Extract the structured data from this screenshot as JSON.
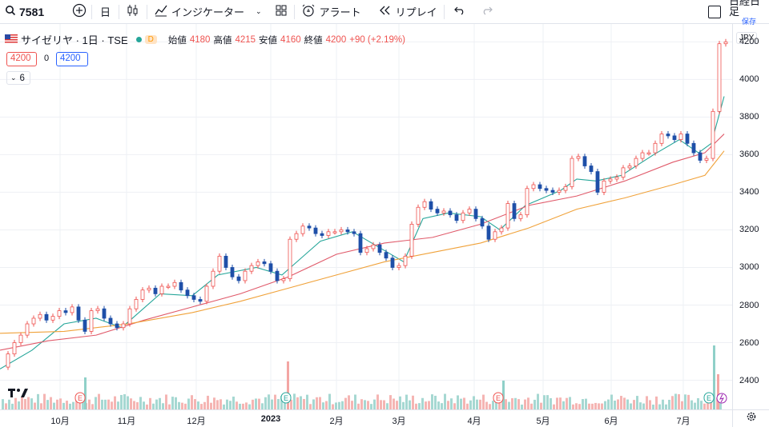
{
  "toolbar": {
    "symbol": "7581",
    "interval": "日",
    "indicators_label": "インジケーター",
    "alert_label": "アラート",
    "replay_label": "リプレイ",
    "index_label": "日経日足",
    "save_label": "保存"
  },
  "legend": {
    "title": "サイゼリヤ · 1日 · TSE",
    "badge": "D",
    "open_label": "始値",
    "open": "4180",
    "high_label": "高値",
    "high": "4215",
    "low_label": "安値",
    "low": "4160",
    "close_label": "終値",
    "close": "4200",
    "change": "+90 (+2.19%)",
    "bid": "4200",
    "spread": "0",
    "ask": "4200",
    "indicator_count": "6"
  },
  "currency": "JPY",
  "colors": {
    "up": "#26a69a",
    "down": "#ef5350",
    "ma_short": "#26a69a",
    "ma_mid": "#e05a6a",
    "ma_long": "#f0a23a",
    "up_candle": "#ffffff",
    "down_candle": "#1e4fa8"
  },
  "chart_data": {
    "type": "candlestick",
    "x_labels": [
      "10月",
      "11月",
      "12月",
      "2023",
      "2月",
      "3月",
      "4月",
      "5月",
      "6月",
      "7月"
    ],
    "y_ticks": [
      2400,
      2600,
      2800,
      3000,
      3200,
      3400,
      3600,
      3800,
      4000,
      4200
    ],
    "ylim": [
      2245,
      4295
    ],
    "earnings_markers": [
      "E",
      "E",
      "E",
      "E"
    ],
    "series": [
      {
        "name": "price",
        "points": [
          [
            0,
            2470
          ],
          [
            8,
            2540
          ],
          [
            16,
            2600
          ],
          [
            24,
            2640
          ],
          [
            32,
            2700
          ],
          [
            40,
            2730
          ],
          [
            48,
            2750
          ],
          [
            56,
            2720
          ],
          [
            64,
            2740
          ],
          [
            72,
            2770
          ],
          [
            80,
            2760
          ],
          [
            88,
            2790
          ],
          [
            96,
            2720
          ],
          [
            104,
            2660
          ],
          [
            112,
            2770
          ],
          [
            120,
            2780
          ],
          [
            128,
            2730
          ],
          [
            136,
            2700
          ],
          [
            144,
            2680
          ],
          [
            152,
            2700
          ],
          [
            160,
            2780
          ],
          [
            168,
            2830
          ],
          [
            176,
            2880
          ],
          [
            184,
            2890
          ],
          [
            192,
            2860
          ],
          [
            200,
            2900
          ],
          [
            208,
            2900
          ],
          [
            216,
            2920
          ],
          [
            224,
            2880
          ],
          [
            232,
            2850
          ],
          [
            240,
            2830
          ],
          [
            248,
            2820
          ],
          [
            256,
            2900
          ],
          [
            264,
            2980
          ],
          [
            272,
            3060
          ],
          [
            280,
            3000
          ],
          [
            288,
            2950
          ],
          [
            296,
            2930
          ],
          [
            304,
            2980
          ],
          [
            312,
            3010
          ],
          [
            320,
            3030
          ],
          [
            328,
            3020
          ],
          [
            336,
            2980
          ],
          [
            344,
            2930
          ],
          [
            352,
            2940
          ],
          [
            360,
            3150
          ],
          [
            368,
            3180
          ],
          [
            376,
            3220
          ],
          [
            384,
            3210
          ],
          [
            392,
            3180
          ],
          [
            400,
            3170
          ],
          [
            408,
            3190
          ],
          [
            416,
            3190
          ],
          [
            424,
            3200
          ],
          [
            432,
            3190
          ],
          [
            440,
            3180
          ],
          [
            448,
            3080
          ],
          [
            456,
            3100
          ],
          [
            464,
            3120
          ],
          [
            472,
            3080
          ],
          [
            480,
            3050
          ],
          [
            488,
            3000
          ],
          [
            496,
            3010
          ],
          [
            504,
            3060
          ],
          [
            512,
            3230
          ],
          [
            520,
            3320
          ],
          [
            528,
            3350
          ],
          [
            536,
            3310
          ],
          [
            544,
            3290
          ],
          [
            552,
            3300
          ],
          [
            560,
            3280
          ],
          [
            568,
            3250
          ],
          [
            576,
            3290
          ],
          [
            584,
            3310
          ],
          [
            592,
            3260
          ],
          [
            600,
            3220
          ],
          [
            608,
            3150
          ],
          [
            616,
            3190
          ],
          [
            624,
            3210
          ],
          [
            632,
            3340
          ],
          [
            640,
            3260
          ],
          [
            648,
            3280
          ],
          [
            656,
            3420
          ],
          [
            664,
            3440
          ],
          [
            672,
            3420
          ],
          [
            680,
            3410
          ],
          [
            688,
            3400
          ],
          [
            696,
            3410
          ],
          [
            704,
            3430
          ],
          [
            712,
            3580
          ],
          [
            720,
            3590
          ],
          [
            728,
            3540
          ],
          [
            736,
            3510
          ],
          [
            744,
            3400
          ],
          [
            752,
            3460
          ],
          [
            760,
            3470
          ],
          [
            768,
            3480
          ],
          [
            776,
            3530
          ],
          [
            784,
            3540
          ],
          [
            792,
            3580
          ],
          [
            800,
            3610
          ],
          [
            808,
            3610
          ],
          [
            816,
            3660
          ],
          [
            824,
            3710
          ],
          [
            832,
            3700
          ],
          [
            840,
            3680
          ],
          [
            848,
            3710
          ],
          [
            856,
            3660
          ],
          [
            864,
            3610
          ],
          [
            872,
            3570
          ],
          [
            880,
            3580
          ],
          [
            888,
            3830
          ],
          [
            896,
            4190
          ],
          [
            904,
            4200
          ]
        ]
      },
      {
        "name": "ma_short",
        "points": [
          [
            0,
            2460
          ],
          [
            40,
            2560
          ],
          [
            80,
            2700
          ],
          [
            120,
            2730
          ],
          [
            152,
            2680
          ],
          [
            200,
            2860
          ],
          [
            240,
            2850
          ],
          [
            272,
            2960
          ],
          [
            320,
            3000
          ],
          [
            352,
            2960
          ],
          [
            400,
            3140
          ],
          [
            440,
            3190
          ],
          [
            480,
            3090
          ],
          [
            504,
            3030
          ],
          [
            528,
            3260
          ],
          [
            560,
            3290
          ],
          [
            600,
            3270
          ],
          [
            624,
            3200
          ],
          [
            656,
            3330
          ],
          [
            700,
            3410
          ],
          [
            720,
            3470
          ],
          [
            744,
            3460
          ],
          [
            776,
            3490
          ],
          [
            816,
            3600
          ],
          [
            848,
            3680
          ],
          [
            872,
            3610
          ],
          [
            888,
            3660
          ],
          [
            904,
            3910
          ]
        ]
      },
      {
        "name": "ma_mid",
        "points": [
          [
            0,
            2560
          ],
          [
            60,
            2610
          ],
          [
            120,
            2640
          ],
          [
            180,
            2720
          ],
          [
            240,
            2790
          ],
          [
            300,
            2860
          ],
          [
            360,
            2950
          ],
          [
            420,
            3070
          ],
          [
            480,
            3130
          ],
          [
            540,
            3160
          ],
          [
            600,
            3230
          ],
          [
            660,
            3330
          ],
          [
            720,
            3380
          ],
          [
            780,
            3460
          ],
          [
            840,
            3560
          ],
          [
            880,
            3610
          ],
          [
            904,
            3710
          ]
        ]
      },
      {
        "name": "ma_long",
        "points": [
          [
            0,
            2650
          ],
          [
            80,
            2660
          ],
          [
            160,
            2700
          ],
          [
            240,
            2760
          ],
          [
            300,
            2820
          ],
          [
            360,
            2890
          ],
          [
            420,
            2960
          ],
          [
            480,
            3030
          ],
          [
            540,
            3080
          ],
          [
            600,
            3130
          ],
          [
            660,
            3210
          ],
          [
            720,
            3310
          ],
          [
            780,
            3370
          ],
          [
            840,
            3440
          ],
          [
            880,
            3490
          ],
          [
            904,
            3620
          ]
        ]
      }
    ],
    "volume": {
      "baseline_label": "",
      "spikes": [
        {
          "x": 105,
          "height": 2,
          "color": "green"
        },
        {
          "x": 358,
          "height": 3,
          "color": "red"
        },
        {
          "x": 627,
          "height": 1.8,
          "color": "green"
        },
        {
          "x": 890,
          "height": 4,
          "color": "green"
        },
        {
          "x": 895,
          "height": 2.2,
          "color": "red"
        }
      ]
    }
  }
}
